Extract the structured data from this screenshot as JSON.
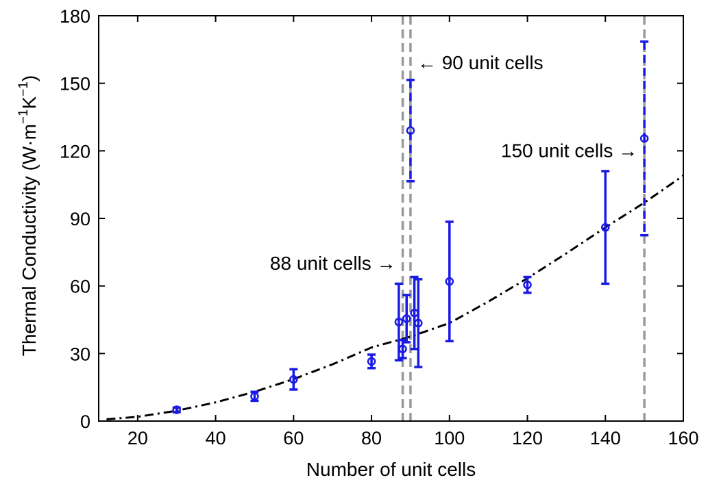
{
  "chart_data": {
    "type": "scatter",
    "title": "",
    "xlabel": "Number of unit cells",
    "ylabel_main": "Thermal Conductivity (W·m",
    "ylabel_sup1": "−1",
    "ylabel_mid": "K",
    "ylabel_sup2": "−1",
    "ylabel_close": ")",
    "xlim": [
      10,
      160
    ],
    "ylim": [
      0,
      180
    ],
    "xticks": [
      20,
      40,
      60,
      80,
      100,
      120,
      140,
      160
    ],
    "yticks": [
      0,
      30,
      60,
      90,
      120,
      150,
      180
    ],
    "grid": false,
    "colors": {
      "data": "#1a1ae6",
      "fit": "#000000",
      "vline": "#999999"
    },
    "series": [
      {
        "type": "errorbar",
        "points": [
          {
            "x": 30,
            "y": 5,
            "err": 1.0
          },
          {
            "x": 50,
            "y": 11,
            "err": 2.0
          },
          {
            "x": 60,
            "y": 18.5,
            "err": 4.5
          },
          {
            "x": 80,
            "y": 26.5,
            "err": 3.0
          },
          {
            "x": 87,
            "y": 44,
            "err": 17
          },
          {
            "x": 88,
            "y": 32,
            "err": 4.0
          },
          {
            "x": 89,
            "y": 45.5,
            "err": 10.5
          },
          {
            "x": 91,
            "y": 48,
            "err": 16
          },
          {
            "x": 92,
            "y": 43.5,
            "err": 19.5
          },
          {
            "x": 100,
            "y": 62,
            "err": 26.5
          },
          {
            "x": 120,
            "y": 60.5,
            "err": 3.5
          },
          {
            "x": 140,
            "y": 86,
            "err": 25
          }
        ]
      },
      {
        "type": "errorbar-dashed",
        "points": [
          {
            "x": 90,
            "y": 129,
            "err": 22.5
          },
          {
            "x": 150,
            "y": 125.5,
            "err": 43
          }
        ]
      },
      {
        "type": "fit-dashdot",
        "x": [
          12,
          20,
          30,
          40,
          50,
          60,
          70,
          80,
          90,
          100,
          110,
          120,
          130,
          140,
          150,
          160
        ],
        "y": [
          0.8,
          1.9,
          4.6,
          8.3,
          13.0,
          18.6,
          25.2,
          32.7,
          37.5,
          43.5,
          53.1,
          63.4,
          74.5,
          86.0,
          97.0,
          109.0
        ]
      }
    ],
    "vlines": [
      88,
      90,
      150
    ],
    "annotations": [
      {
        "text": "90 unit cells",
        "arrow": "←",
        "side": "right",
        "x": 90,
        "y": 159
      },
      {
        "text": "150 unit cells",
        "arrow": "→",
        "side": "left",
        "x": 150,
        "y": 120
      },
      {
        "text": "88 unit cells",
        "arrow": "→",
        "side": "left",
        "x": 88,
        "y": 70
      }
    ]
  }
}
